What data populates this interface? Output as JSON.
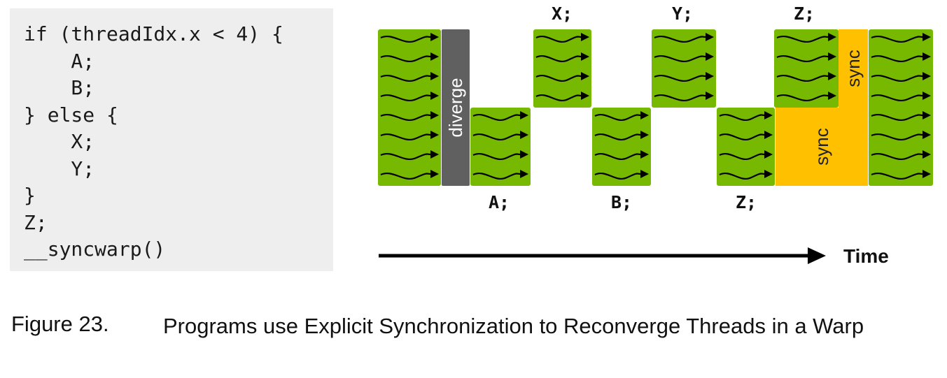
{
  "code_lines": [
    "if (threadIdx.x < 4) {",
    "    A;",
    "    B;",
    "} else {",
    "    X;",
    "    Y;",
    "}",
    "Z;",
    "__syncwarp()"
  ],
  "diagram": {
    "labels": {
      "A": "A;",
      "B": "B;",
      "X": "X;",
      "Y": "Y;",
      "Z_top": "Z;",
      "Z_bottom": "Z;",
      "diverge": "diverge",
      "sync_top": "sync",
      "sync_bottom": "sync",
      "time": "Time"
    },
    "colors": {
      "thread_block": "#76b900",
      "diverge_bar": "#606060",
      "sync_block": "#ffc000",
      "arrow": "#000000"
    }
  },
  "caption": {
    "number": "Figure 23.",
    "text": "Programs use Explicit Synchronization to Reconverge Threads in a Warp"
  }
}
